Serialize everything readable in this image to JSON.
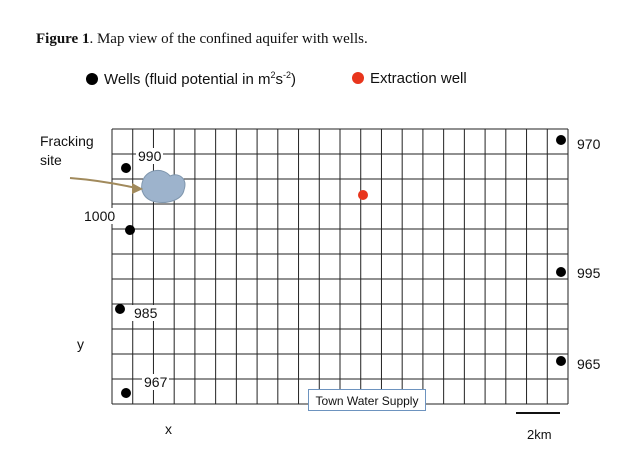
{
  "caption": {
    "bold": "Figure 1",
    "rest": ". Map view of the confined aquifer with wells."
  },
  "legend": {
    "wells_label_prefix": "Wells (fluid potential in m",
    "wells_sup1": "2",
    "wells_mid": "s",
    "wells_sup2": "-2",
    "wells_suffix": ")",
    "extraction_label": "Extraction well",
    "wells_color": "#000000",
    "extraction_color": "#e8351c"
  },
  "site": {
    "line1": "Fracking",
    "line2": "site",
    "blob_color": "#9db3cc"
  },
  "well_labels": {
    "w990": "990",
    "w1000": "1000",
    "w985": "985",
    "w967": "967",
    "w970": "970",
    "w995": "995",
    "w965": "965"
  },
  "axis": {
    "x": "x",
    "y": "y"
  },
  "town_label": "Town Water Supply",
  "scale_label": "2km",
  "grid": {
    "columns": 22,
    "rows": 11
  }
}
